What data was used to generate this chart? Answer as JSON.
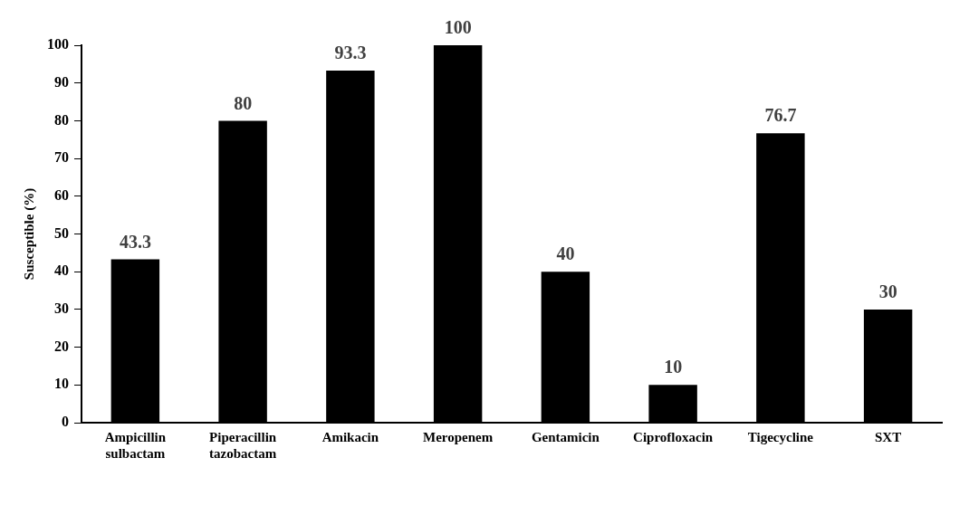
{
  "chart_data": {
    "type": "bar",
    "ylabel": "Susceptible (%)",
    "categories": [
      "Ampicillin sulbactam",
      "Piperacillin tazobactam",
      "Amikacin",
      "Meropenem",
      "Gentamicin",
      "Ciprofloxacin",
      "Tigecycline",
      "SXT"
    ],
    "values": [
      43.3,
      80,
      93.3,
      100,
      40,
      10,
      76.7,
      30
    ],
    "color": "#000000",
    "ylim": [
      0,
      100
    ],
    "yticks": [
      0,
      10,
      20,
      30,
      40,
      50,
      60,
      70,
      80,
      90,
      100
    ],
    "grid": false,
    "legend": false,
    "data_labels": true
  }
}
